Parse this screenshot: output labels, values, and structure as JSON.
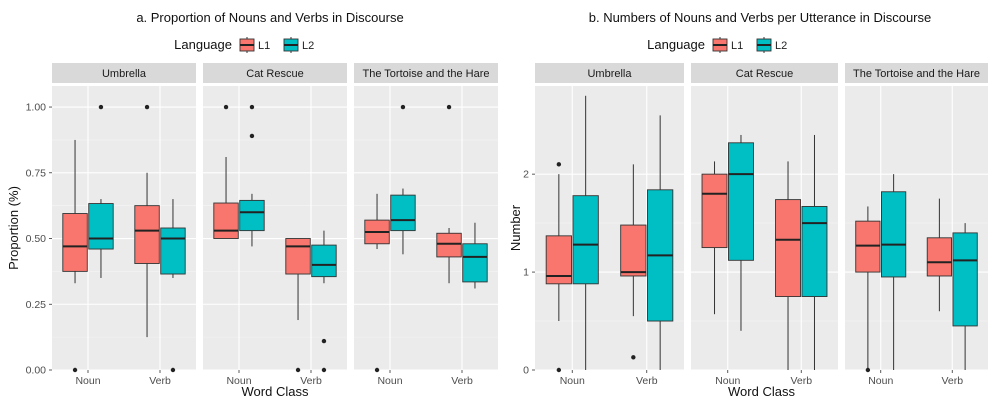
{
  "colors": {
    "L1": "#F8766D",
    "L2": "#00BFC4"
  },
  "chart_data": [
    {
      "type": "box",
      "title": "a. Proportion of Nouns and Verbs in Discourse",
      "legend": {
        "title": "Language",
        "labels": [
          "L1",
          "L2"
        ],
        "position": "top"
      },
      "xlabel": "Word Class",
      "ylabel": "Proportion (%)",
      "ylim": [
        0,
        1.08
      ],
      "yticks": [
        0,
        0.25,
        0.5,
        0.75,
        1.0
      ],
      "ytick_labels": [
        "0.00",
        "0.25",
        "0.50",
        "0.75",
        "1.00"
      ],
      "categories": [
        "Noun",
        "Verb"
      ],
      "panels": [
        {
          "name": "Umbrella",
          "boxes": [
            {
              "category": "Noun",
              "group": "L1",
              "min": 0.33,
              "q1": 0.375,
              "median": 0.47,
              "q3": 0.595,
              "max": 0.875,
              "outliers": [
                0.0
              ]
            },
            {
              "category": "Noun",
              "group": "L2",
              "min": 0.35,
              "q1": 0.46,
              "median": 0.5,
              "q3": 0.633,
              "max": 0.65,
              "outliers": [
                1.0
              ]
            },
            {
              "category": "Verb",
              "group": "L1",
              "min": 0.125,
              "q1": 0.405,
              "median": 0.53,
              "q3": 0.625,
              "max": 0.75,
              "outliers": [
                1.0
              ]
            },
            {
              "category": "Verb",
              "group": "L2",
              "min": 0.35,
              "q1": 0.365,
              "median": 0.5,
              "q3": 0.54,
              "max": 0.65,
              "outliers": [
                0.0
              ]
            }
          ]
        },
        {
          "name": "Cat Rescue",
          "boxes": [
            {
              "category": "Noun",
              "group": "L1",
              "min": 0.5,
              "q1": 0.5,
              "median": 0.53,
              "q3": 0.635,
              "max": 0.81,
              "outliers": [
                1.0
              ]
            },
            {
              "category": "Noun",
              "group": "L2",
              "min": 0.47,
              "q1": 0.53,
              "median": 0.6,
              "q3": 0.645,
              "max": 0.67,
              "outliers": [
                1.0,
                0.89
              ]
            },
            {
              "category": "Verb",
              "group": "L1",
              "min": 0.19,
              "q1": 0.365,
              "median": 0.47,
              "q3": 0.5,
              "max": 0.5,
              "outliers": [
                0.0
              ]
            },
            {
              "category": "Verb",
              "group": "L2",
              "min": 0.33,
              "q1": 0.355,
              "median": 0.4,
              "q3": 0.475,
              "max": 0.53,
              "outliers": [
                0.11,
                0.0
              ]
            }
          ]
        },
        {
          "name": "The Tortoise and the Hare",
          "boxes": [
            {
              "category": "Noun",
              "group": "L1",
              "min": 0.46,
              "q1": 0.48,
              "median": 0.525,
              "q3": 0.57,
              "max": 0.67,
              "outliers": [
                0.0
              ]
            },
            {
              "category": "Noun",
              "group": "L2",
              "min": 0.44,
              "q1": 0.53,
              "median": 0.57,
              "q3": 0.665,
              "max": 0.69,
              "outliers": [
                1.0
              ]
            },
            {
              "category": "Verb",
              "group": "L1",
              "min": 0.33,
              "q1": 0.43,
              "median": 0.48,
              "q3": 0.52,
              "max": 0.54,
              "outliers": [
                1.0
              ]
            },
            {
              "category": "Verb",
              "group": "L2",
              "min": 0.31,
              "q1": 0.335,
              "median": 0.43,
              "q3": 0.48,
              "max": 0.56,
              "outliers": []
            }
          ]
        }
      ]
    },
    {
      "type": "box",
      "title": "b. Numbers of Nouns and Verbs per Utterance in Discourse",
      "legend": {
        "title": "Language",
        "labels": [
          "L1",
          "L2"
        ],
        "position": "top"
      },
      "xlabel": "Word Class",
      "ylabel": "Number",
      "ylim": [
        0,
        2.9
      ],
      "yticks": [
        0,
        1,
        2
      ],
      "ytick_labels": [
        "0",
        "1",
        "2"
      ],
      "categories": [
        "Noun",
        "Verb"
      ],
      "panels": [
        {
          "name": "Umbrella",
          "boxes": [
            {
              "category": "Noun",
              "group": "L1",
              "min": 0.5,
              "q1": 0.88,
              "median": 0.96,
              "q3": 1.37,
              "max": 2.0,
              "outliers": [
                2.1,
                0.0
              ]
            },
            {
              "category": "Noun",
              "group": "L2",
              "min": 0.0,
              "q1": 0.88,
              "median": 1.28,
              "q3": 1.78,
              "max": 2.8,
              "outliers": []
            },
            {
              "category": "Verb",
              "group": "L1",
              "min": 0.55,
              "q1": 0.96,
              "median": 1.0,
              "q3": 1.48,
              "max": 2.1,
              "outliers": [
                0.13
              ]
            },
            {
              "category": "Verb",
              "group": "L2",
              "min": 0.0,
              "q1": 0.5,
              "median": 1.17,
              "q3": 1.84,
              "max": 2.6,
              "outliers": []
            }
          ]
        },
        {
          "name": "Cat Rescue",
          "boxes": [
            {
              "category": "Noun",
              "group": "L1",
              "min": 0.57,
              "q1": 1.25,
              "median": 1.8,
              "q3": 2.0,
              "max": 2.13,
              "outliers": []
            },
            {
              "category": "Noun",
              "group": "L2",
              "min": 0.4,
              "q1": 1.12,
              "median": 2.0,
              "q3": 2.32,
              "max": 2.4,
              "outliers": []
            },
            {
              "category": "Verb",
              "group": "L1",
              "min": 0.0,
              "q1": 0.75,
              "median": 1.33,
              "q3": 1.74,
              "max": 2.13,
              "outliers": []
            },
            {
              "category": "Verb",
              "group": "L2",
              "min": 0.0,
              "q1": 0.75,
              "median": 1.5,
              "q3": 1.67,
              "max": 2.4,
              "outliers": []
            }
          ]
        },
        {
          "name": "The Tortoise and the Hare",
          "boxes": [
            {
              "category": "Noun",
              "group": "L1",
              "min": 0.0,
              "q1": 1.0,
              "median": 1.27,
              "q3": 1.52,
              "max": 1.67,
              "outliers": [
                0.0
              ]
            },
            {
              "category": "Noun",
              "group": "L2",
              "min": 0.0,
              "q1": 0.95,
              "median": 1.28,
              "q3": 1.82,
              "max": 2.0,
              "outliers": []
            },
            {
              "category": "Verb",
              "group": "L1",
              "min": 0.6,
              "q1": 0.96,
              "median": 1.1,
              "q3": 1.35,
              "max": 1.75,
              "outliers": []
            },
            {
              "category": "Verb",
              "group": "L2",
              "min": 0.0,
              "q1": 0.45,
              "median": 1.12,
              "q3": 1.4,
              "max": 1.5,
              "outliers": []
            }
          ]
        }
      ]
    }
  ]
}
